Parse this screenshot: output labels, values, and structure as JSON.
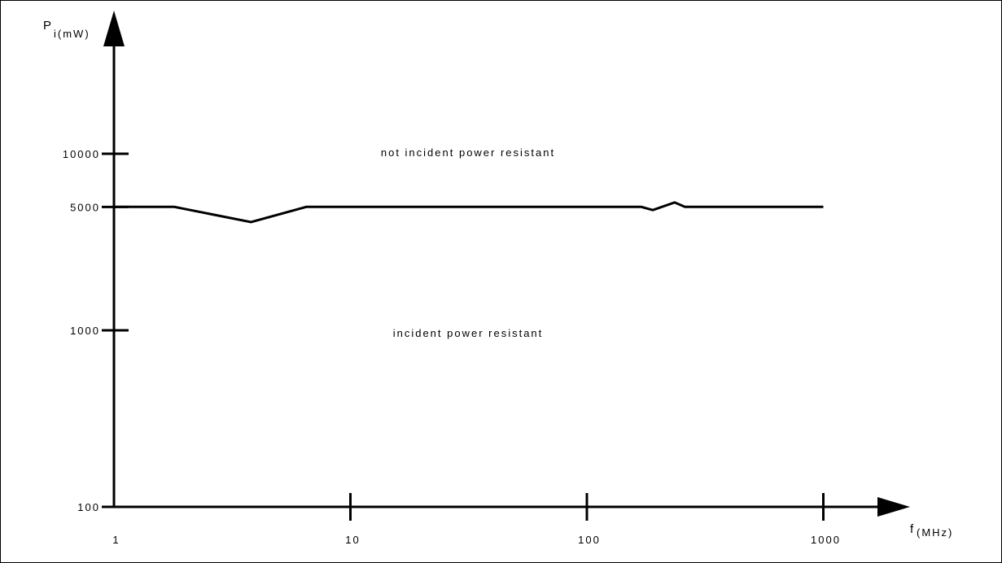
{
  "chart_data": {
    "type": "line",
    "title": "",
    "xlabel": "f",
    "xlabel_unit": "(MHz)",
    "ylabel": "P",
    "ylabel_unit": "i(mW)",
    "x_scale": "log",
    "y_scale": "log",
    "xlim": [
      1,
      1300
    ],
    "ylim": [
      100,
      50000
    ],
    "x_ticks": [
      1,
      10,
      100,
      1000
    ],
    "x_tick_labels": [
      "1",
      "10",
      "100",
      "1000"
    ],
    "y_ticks": [
      100,
      1000,
      5000,
      10000
    ],
    "y_tick_labels": [
      "100",
      "1000",
      "5000",
      "10000"
    ],
    "grid": false,
    "legend": "none",
    "series": [
      {
        "x": [
          1,
          1.8,
          3.8,
          6.5,
          170,
          190,
          235,
          260,
          1000
        ],
        "y": [
          5000,
          5000,
          4100,
          5000,
          5000,
          4800,
          5300,
          5000,
          5000
        ]
      }
    ],
    "annotations": [
      {
        "text": "not incident power resistant",
        "x": 30,
        "y": 10500
      },
      {
        "text": "incident power resistant",
        "x": 30,
        "y": 1000
      }
    ]
  }
}
